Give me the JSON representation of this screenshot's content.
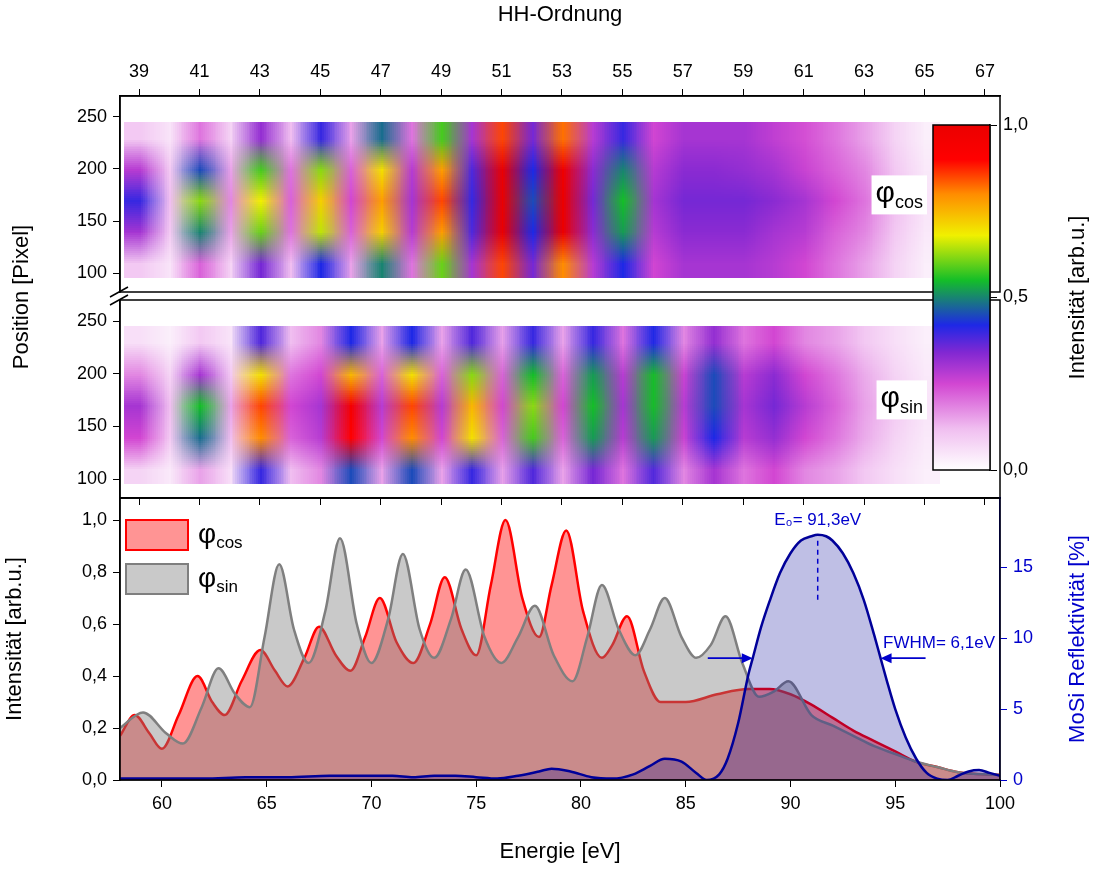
{
  "chart_data": [
    {
      "type": "heatmap",
      "x_label": "HH-Ordnung",
      "y_label": "Position [Pixel]",
      "xlim": [
        38.37,
        67.5
      ],
      "xticks": [
        39,
        41,
        43,
        45,
        47,
        49,
        51,
        53,
        55,
        57,
        59,
        61,
        63,
        65,
        67
      ],
      "ylim": [
        82,
        270
      ],
      "yticks": [
        100,
        150,
        200,
        250
      ],
      "grid": false,
      "panels": [
        {
          "name": "φcos",
          "x": [
            39,
            40,
            41,
            42,
            43,
            44,
            45,
            46,
            47,
            48,
            49,
            50,
            51,
            52,
            53,
            54,
            55,
            56,
            57,
            58,
            59,
            60,
            61,
            62,
            63,
            64,
            65
          ],
          "y": [
            110,
            140,
            170,
            200,
            230
          ],
          "cells": [
            [
              0.1,
              0.05,
              0.22,
              0.08,
              0.35,
              0.12,
              0.42,
              0.15,
              0.5,
              0.2,
              0.6,
              0.3,
              0.85,
              0.35,
              0.8,
              0.28,
              0.42,
              0.25,
              0.3,
              0.3,
              0.3,
              0.28,
              0.25,
              0.2,
              0.15,
              0.08,
              0.03
            ],
            [
              0.3,
              0.1,
              0.5,
              0.15,
              0.6,
              0.2,
              0.65,
              0.22,
              0.72,
              0.28,
              0.78,
              0.38,
              1.0,
              0.42,
              1.0,
              0.33,
              0.52,
              0.28,
              0.33,
              0.33,
              0.33,
              0.3,
              0.28,
              0.22,
              0.18,
              0.1,
              0.04
            ],
            [
              0.4,
              0.12,
              0.62,
              0.18,
              0.68,
              0.22,
              0.72,
              0.25,
              0.78,
              0.3,
              0.85,
              0.4,
              1.0,
              0.45,
              1.0,
              0.35,
              0.55,
              0.3,
              0.35,
              0.35,
              0.35,
              0.33,
              0.3,
              0.25,
              0.2,
              0.12,
              0.05
            ],
            [
              0.28,
              0.1,
              0.45,
              0.15,
              0.58,
              0.2,
              0.62,
              0.22,
              0.7,
              0.28,
              0.78,
              0.38,
              1.0,
              0.42,
              0.98,
              0.33,
              0.5,
              0.28,
              0.33,
              0.33,
              0.32,
              0.3,
              0.26,
              0.22,
              0.18,
              0.1,
              0.04
            ],
            [
              0.1,
              0.05,
              0.2,
              0.08,
              0.32,
              0.12,
              0.4,
              0.15,
              0.48,
              0.2,
              0.58,
              0.3,
              0.85,
              0.35,
              0.82,
              0.28,
              0.4,
              0.25,
              0.3,
              0.3,
              0.3,
              0.27,
              0.24,
              0.2,
              0.15,
              0.08,
              0.03
            ]
          ]
        },
        {
          "name": "φsin",
          "x": [
            39,
            40,
            41,
            42,
            43,
            44,
            45,
            46,
            47,
            48,
            49,
            50,
            51,
            52,
            53,
            54,
            55,
            56,
            57,
            58,
            59,
            60,
            61,
            62,
            63,
            64,
            65
          ],
          "y": [
            110,
            140,
            170,
            200,
            230
          ],
          "cells": [
            [
              0.08,
              0.04,
              0.15,
              0.06,
              0.4,
              0.12,
              0.18,
              0.45,
              0.15,
              0.45,
              0.15,
              0.4,
              0.15,
              0.38,
              0.15,
              0.35,
              0.2,
              0.38,
              0.18,
              0.3,
              0.2,
              0.25,
              0.18,
              0.15,
              0.1,
              0.06,
              0.03
            ],
            [
              0.25,
              0.1,
              0.48,
              0.12,
              0.8,
              0.22,
              0.28,
              0.9,
              0.25,
              0.8,
              0.25,
              0.7,
              0.22,
              0.58,
              0.22,
              0.52,
              0.28,
              0.52,
              0.26,
              0.42,
              0.28,
              0.32,
              0.25,
              0.2,
              0.14,
              0.08,
              0.04
            ],
            [
              0.3,
              0.12,
              0.55,
              0.15,
              0.85,
              0.25,
              0.3,
              0.95,
              0.28,
              0.85,
              0.28,
              0.75,
              0.25,
              0.62,
              0.25,
              0.55,
              0.3,
              0.55,
              0.28,
              0.45,
              0.3,
              0.35,
              0.28,
              0.22,
              0.15,
              0.1,
              0.05
            ],
            [
              0.18,
              0.08,
              0.3,
              0.1,
              0.7,
              0.2,
              0.25,
              0.75,
              0.22,
              0.7,
              0.22,
              0.62,
              0.22,
              0.55,
              0.22,
              0.52,
              0.28,
              0.55,
              0.26,
              0.45,
              0.28,
              0.33,
              0.25,
              0.2,
              0.14,
              0.08,
              0.04
            ],
            [
              0.06,
              0.03,
              0.1,
              0.05,
              0.38,
              0.12,
              0.18,
              0.42,
              0.15,
              0.42,
              0.15,
              0.38,
              0.15,
              0.4,
              0.15,
              0.4,
              0.2,
              0.42,
              0.18,
              0.32,
              0.2,
              0.25,
              0.18,
              0.15,
              0.1,
              0.06,
              0.03
            ]
          ]
        }
      ],
      "colorbar": {
        "title": "Intensität [arb.u.]",
        "range": [
          0,
          1
        ],
        "ticks": [
          {
            "value": 0,
            "label": "0,0"
          },
          {
            "value": 0.5,
            "label": "0,5"
          },
          {
            "value": 1,
            "label": "1,0"
          }
        ]
      }
    },
    {
      "type": "line",
      "x_label": "Energie [eV]",
      "y_label": "Intensität [arb.u.]",
      "y2_label": "MoSi Reflektivität [%]",
      "xlim": [
        58,
        100
      ],
      "xticks": [
        60,
        65,
        70,
        75,
        80,
        85,
        90,
        95,
        100
      ],
      "ylim": [
        0,
        1.085
      ],
      "yticks": [
        {
          "value": 0,
          "label": "0,0"
        },
        {
          "value": 0.2,
          "label": "0,2"
        },
        {
          "value": 0.4,
          "label": "0,4"
        },
        {
          "value": 0.6,
          "label": "0,6"
        },
        {
          "value": 0.8,
          "label": "0,8"
        },
        {
          "value": 1.0,
          "label": "1,0"
        }
      ],
      "y2lim": [
        0,
        19.9
      ],
      "y2ticks": [
        0,
        5,
        10,
        15
      ],
      "grid": false,
      "legend": "upper left",
      "series": [
        {
          "name": "φcos",
          "type": "area",
          "color": "#ff0000",
          "x": [
            58,
            58.7,
            59.4,
            60,
            60.8,
            61.7,
            62.4,
            63,
            63.8,
            64.7,
            65.4,
            66,
            66.8,
            67.5,
            68.3,
            69,
            69.7,
            70.4,
            71.2,
            72,
            72.8,
            73.5,
            74.3,
            75,
            75.7,
            76.4,
            77.2,
            78,
            78.6,
            79.3,
            80.1,
            81,
            81.5,
            82.2,
            83,
            83.8,
            85,
            86.5,
            88,
            89,
            90,
            91,
            92,
            93,
            94,
            95,
            96,
            97,
            98,
            100
          ],
          "values": [
            0.17,
            0.25,
            0.18,
            0.12,
            0.25,
            0.4,
            0.3,
            0.25,
            0.38,
            0.5,
            0.42,
            0.36,
            0.47,
            0.59,
            0.48,
            0.42,
            0.55,
            0.7,
            0.53,
            0.45,
            0.6,
            0.78,
            0.58,
            0.48,
            0.75,
            1.0,
            0.7,
            0.55,
            0.75,
            0.96,
            0.65,
            0.47,
            0.52,
            0.63,
            0.42,
            0.3,
            0.3,
            0.33,
            0.35,
            0.35,
            0.33,
            0.29,
            0.24,
            0.19,
            0.15,
            0.11,
            0.07,
            0.05,
            0.03,
            0.02
          ]
        },
        {
          "name": "φsin",
          "type": "area",
          "color": "#7f7f7f",
          "x": [
            58,
            59.1,
            60.2,
            61,
            61.9,
            62.7,
            63.5,
            64.2,
            64.9,
            65.6,
            66.3,
            67,
            67.8,
            68.5,
            69.3,
            70,
            70.8,
            71.5,
            72.3,
            73,
            73.8,
            74.5,
            75.4,
            76.2,
            77,
            77.8,
            78.7,
            79.6,
            80.3,
            81,
            81.8,
            82.6,
            83.3,
            84,
            84.8,
            85.5,
            86.2,
            86.9,
            87.7,
            88.5,
            89.2,
            89.9,
            91,
            92,
            93,
            94,
            95,
            96,
            97,
            98,
            100
          ],
          "values": [
            0.2,
            0.26,
            0.18,
            0.14,
            0.28,
            0.43,
            0.33,
            0.28,
            0.55,
            0.83,
            0.58,
            0.45,
            0.65,
            0.93,
            0.6,
            0.45,
            0.62,
            0.87,
            0.58,
            0.47,
            0.62,
            0.81,
            0.55,
            0.45,
            0.55,
            0.67,
            0.48,
            0.38,
            0.55,
            0.75,
            0.58,
            0.48,
            0.58,
            0.7,
            0.55,
            0.47,
            0.52,
            0.63,
            0.45,
            0.32,
            0.34,
            0.38,
            0.25,
            0.21,
            0.17,
            0.13,
            0.1,
            0.07,
            0.05,
            0.03,
            0.02
          ]
        },
        {
          "type": "area",
          "color": "#000099",
          "axis": "y2",
          "x": [
            58,
            60,
            62,
            64,
            66,
            68,
            70,
            71,
            72,
            73,
            74,
            75,
            76,
            77,
            78,
            78.6,
            79.5,
            80.5,
            81.5,
            82.5,
            83.3,
            84,
            84.8,
            85.5,
            86,
            86.6,
            87,
            87.5,
            88,
            88.2,
            88.6,
            89,
            89.5,
            90,
            90.5,
            91,
            91.3,
            91.7,
            92,
            92.5,
            93,
            93.5,
            94,
            94.3,
            94.6,
            95,
            95.5,
            96,
            96.5,
            97,
            97.5,
            98,
            98.5,
            99,
            99.5,
            100
          ],
          "values": [
            0.1,
            0.1,
            0.1,
            0.2,
            0.2,
            0.3,
            0.3,
            0.3,
            0.2,
            0.3,
            0.3,
            0.2,
            0.1,
            0.3,
            0.6,
            0.8,
            0.6,
            0.2,
            0.1,
            0.4,
            1.0,
            1.5,
            1.3,
            0.5,
            0.0,
            0.4,
            1.5,
            4.0,
            7.5,
            8.6,
            10.8,
            12.6,
            14.6,
            16.0,
            16.9,
            17.2,
            17.3,
            17.2,
            16.9,
            16.0,
            14.6,
            12.7,
            10.2,
            8.6,
            7.0,
            5.0,
            3.0,
            1.5,
            0.5,
            0.1,
            0.0,
            0.3,
            0.6,
            0.7,
            0.5,
            0.3
          ]
        }
      ],
      "annotations": [
        {
          "text": "E₀= 91,3eV",
          "x": 91.3,
          "y": 17.3,
          "axis": "y2"
        },
        {
          "text": "FWHM= 6,1eV",
          "x": [
            88.2,
            94.3
          ],
          "y": 8.6,
          "axis": "y2"
        }
      ]
    }
  ]
}
